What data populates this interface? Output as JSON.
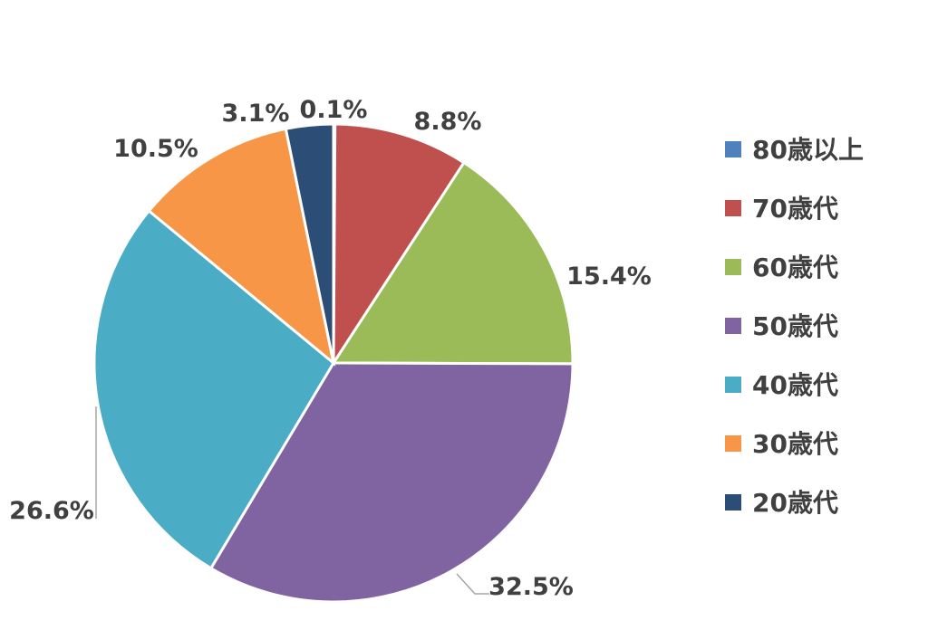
{
  "chart_data": {
    "type": "pie",
    "start_category": "80歳以上",
    "direction": "clockwise",
    "categories": [
      "80歳以上",
      "70歳代",
      "60歳代",
      "50歳代",
      "40歳代",
      "30歳代",
      "20歳代"
    ],
    "values": [
      0.1,
      8.8,
      15.4,
      32.5,
      26.6,
      10.5,
      3.1
    ],
    "labels": [
      "0.1%",
      "8.8%",
      "15.4%",
      "32.5%",
      "26.6%",
      "10.5%",
      "3.1%"
    ],
    "colors": [
      "#4f81bd",
      "#c0504d",
      "#9bbb59",
      "#8064a2",
      "#4bacc6",
      "#f79646",
      "#2c4d75"
    ],
    "legend_position": "right"
  }
}
